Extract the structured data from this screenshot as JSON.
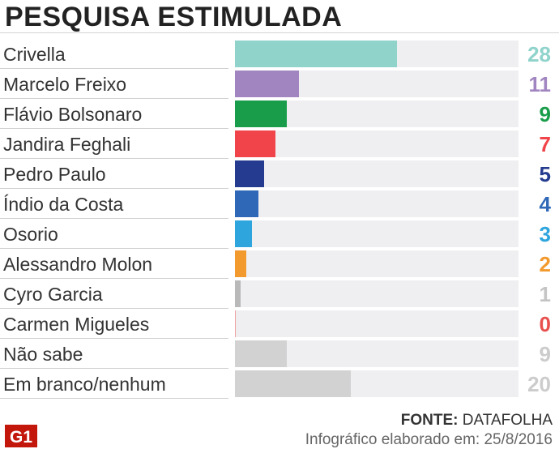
{
  "title": "PESQUISA ESTIMULADA",
  "chart_data": {
    "type": "bar",
    "orientation": "horizontal",
    "categories": [
      "Crivella",
      "Marcelo Freixo",
      "Flávio Bolsonaro",
      "Jandira Feghali",
      "Pedro Paulo",
      "Índio da Costa",
      "Osorio",
      "Alessandro Molon",
      "Cyro Garcia",
      "Carmen Migueles",
      "Não sabe",
      "Em branco/nenhum"
    ],
    "values": [
      28,
      11,
      9,
      7,
      5,
      4,
      3,
      2,
      1,
      0,
      9,
      20
    ],
    "value_labels": [
      "28",
      "11",
      "9",
      "7",
      "5",
      "4",
      "3",
      "2",
      "1",
      "0",
      "9",
      "20"
    ],
    "colors": [
      "#8fd3cb",
      "#a185c0",
      "#1a9d4b",
      "#f0444a",
      "#243b8f",
      "#2f68b6",
      "#2ea5dd",
      "#f39a2e",
      "#b9b9b9",
      "#f2a0a0",
      "#d2d2d2",
      "#d2d2d2"
    ],
    "value_colors": [
      "#8fd3cb",
      "#a185c0",
      "#1a9d4b",
      "#f0444a",
      "#243b8f",
      "#2f68b6",
      "#2ea5dd",
      "#f39a2e",
      "#c4c4c4",
      "#e8504e",
      "#cccccc",
      "#cccccc"
    ],
    "xlim": [
      0,
      49
    ],
    "grid": false
  },
  "footer": {
    "source_label": "FONTE:",
    "source_value": "DATAFOLHA",
    "credit": "Infográfico elaborado em: 25/8/2016",
    "logo_text": "G1"
  }
}
